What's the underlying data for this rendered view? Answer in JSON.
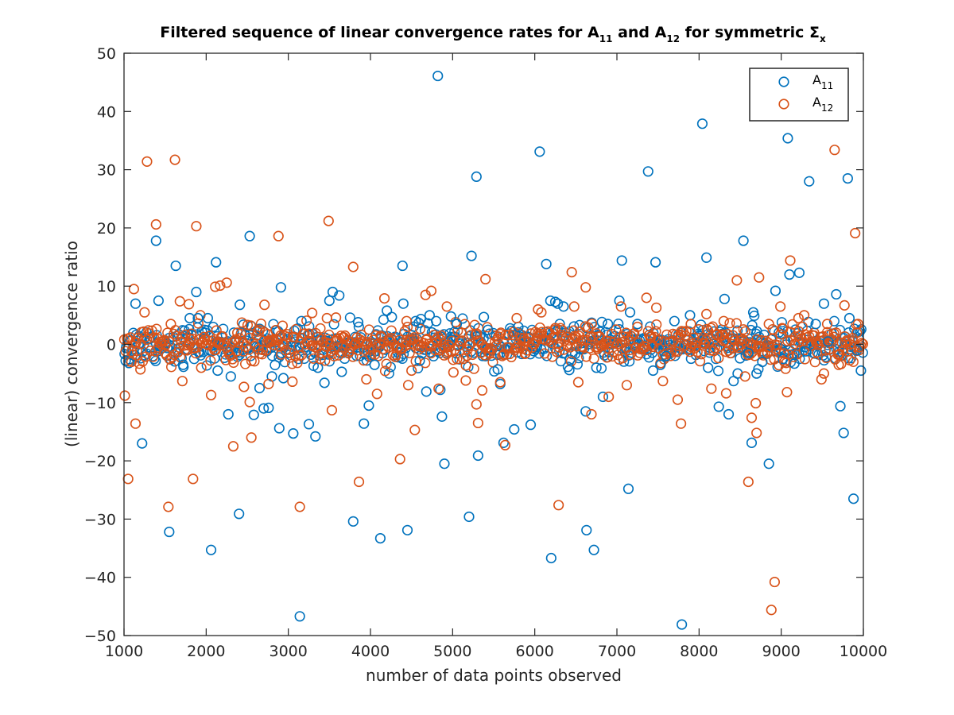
{
  "chart_data": {
    "type": "scatter",
    "title_parts": {
      "t1": "Filtered sequence of linear convergence rates for A",
      "s1": "11",
      "t2": " and A",
      "s2": "12",
      "t3": " for symmetric Σ",
      "s3": "x"
    },
    "xlabel": "number of data points observed",
    "ylabel": "(linear) convergence ratio",
    "xlim": [
      1000,
      10000
    ],
    "ylim": [
      -50,
      50
    ],
    "xticks": [
      1000,
      2000,
      3000,
      4000,
      5000,
      6000,
      7000,
      8000,
      9000,
      10000
    ],
    "yticks": [
      -50,
      -40,
      -30,
      -20,
      -10,
      0,
      10,
      20,
      30,
      40,
      50
    ],
    "grid": false,
    "legend_position": "top-right",
    "marker": "open-circle",
    "series": [
      {
        "name": "A",
        "name_sub": "11",
        "color": "#0072BD",
        "points": [
          [
            1020,
            -2.8
          ],
          [
            1060,
            -3.2
          ],
          [
            1140,
            7.0
          ],
          [
            1220,
            -17.0
          ],
          [
            1390,
            17.8
          ],
          [
            1420,
            7.5
          ],
          [
            1550,
            -32.2
          ],
          [
            1630,
            13.5
          ],
          [
            1720,
            -3.5
          ],
          [
            1800,
            4.5
          ],
          [
            1880,
            9.0
          ],
          [
            1900,
            4.5
          ],
          [
            2020,
            4.5
          ],
          [
            2060,
            -35.3
          ],
          [
            2120,
            14.1
          ],
          [
            2140,
            -4.5
          ],
          [
            2270,
            -12.0
          ],
          [
            2300,
            -5.5
          ],
          [
            2400,
            -29.1
          ],
          [
            2410,
            6.8
          ],
          [
            2530,
            18.6
          ],
          [
            2580,
            -12.1
          ],
          [
            2650,
            -7.5
          ],
          [
            2700,
            -11.0
          ],
          [
            2760,
            -10.9
          ],
          [
            2800,
            -5.5
          ],
          [
            2890,
            -14.4
          ],
          [
            2910,
            9.8
          ],
          [
            2940,
            -5.8
          ],
          [
            3060,
            -15.3
          ],
          [
            3140,
            -46.7
          ],
          [
            3160,
            4.0
          ],
          [
            3250,
            -13.7
          ],
          [
            3330,
            -15.8
          ],
          [
            3360,
            -4.0
          ],
          [
            3440,
            -6.6
          ],
          [
            3500,
            7.5
          ],
          [
            3540,
            9.0
          ],
          [
            3620,
            8.4
          ],
          [
            3650,
            -4.7
          ],
          [
            3790,
            -30.4
          ],
          [
            3850,
            3.8
          ],
          [
            3920,
            -13.6
          ],
          [
            3980,
            -10.5
          ],
          [
            4050,
            -3.5
          ],
          [
            4120,
            -33.3
          ],
          [
            4200,
            5.8
          ],
          [
            4260,
            4.7
          ],
          [
            4390,
            13.5
          ],
          [
            4400,
            7.0
          ],
          [
            4450,
            -31.9
          ],
          [
            4550,
            4.0
          ],
          [
            4600,
            -2.8
          ],
          [
            4680,
            -8.1
          ],
          [
            4720,
            5.0
          ],
          [
            4800,
            4.0
          ],
          [
            4820,
            46.1
          ],
          [
            4850,
            -7.8
          ],
          [
            4870,
            -12.4
          ],
          [
            4900,
            -20.5
          ],
          [
            4980,
            4.8
          ],
          [
            5050,
            3.5
          ],
          [
            5200,
            -29.6
          ],
          [
            5230,
            15.2
          ],
          [
            5290,
            28.8
          ],
          [
            5310,
            -19.1
          ],
          [
            5380,
            4.7
          ],
          [
            5430,
            2.5
          ],
          [
            5550,
            -4.3
          ],
          [
            5580,
            -6.8
          ],
          [
            5620,
            -16.9
          ],
          [
            5750,
            -14.6
          ],
          [
            5800,
            3.0
          ],
          [
            5950,
            -13.8
          ],
          [
            6060,
            33.1
          ],
          [
            6140,
            13.8
          ],
          [
            6190,
            7.5
          ],
          [
            6200,
            -36.7
          ],
          [
            6250,
            7.3
          ],
          [
            6280,
            7.0
          ],
          [
            6350,
            6.5
          ],
          [
            6420,
            -4.4
          ],
          [
            6620,
            -11.5
          ],
          [
            6630,
            -31.9
          ],
          [
            6720,
            -35.3
          ],
          [
            6750,
            -4.0
          ],
          [
            6830,
            -9.0
          ],
          [
            6890,
            3.5
          ],
          [
            7030,
            7.5
          ],
          [
            7060,
            14.4
          ],
          [
            7140,
            -24.8
          ],
          [
            7160,
            5.5
          ],
          [
            7250,
            3.5
          ],
          [
            7380,
            29.7
          ],
          [
            7440,
            -4.5
          ],
          [
            7470,
            14.1
          ],
          [
            7530,
            -3.5
          ],
          [
            7600,
            -2.0
          ],
          [
            7700,
            4.0
          ],
          [
            7790,
            -48.1
          ],
          [
            7890,
            5.0
          ],
          [
            8040,
            37.9
          ],
          [
            8090,
            14.9
          ],
          [
            8110,
            -4.0
          ],
          [
            8240,
            -10.7
          ],
          [
            8310,
            7.8
          ],
          [
            8360,
            -12.0
          ],
          [
            8420,
            -6.3
          ],
          [
            8470,
            -5.0
          ],
          [
            8540,
            17.8
          ],
          [
            8600,
            -1.5
          ],
          [
            8640,
            -16.9
          ],
          [
            8660,
            5.5
          ],
          [
            8700,
            -5.0
          ],
          [
            8770,
            -3.0
          ],
          [
            8850,
            -20.5
          ],
          [
            8930,
            9.2
          ],
          [
            9020,
            -2.5
          ],
          [
            9080,
            35.4
          ],
          [
            9100,
            12.0
          ],
          [
            9160,
            -3.3
          ],
          [
            9220,
            12.3
          ],
          [
            9300,
            -1.2
          ],
          [
            9340,
            28.0
          ],
          [
            9420,
            3.5
          ],
          [
            9520,
            7.0
          ],
          [
            9570,
            0.5
          ],
          [
            9670,
            8.6
          ],
          [
            9720,
            -10.6
          ],
          [
            9760,
            -15.2
          ],
          [
            9810,
            28.5
          ],
          [
            9830,
            4.5
          ],
          [
            9880,
            -26.5
          ],
          [
            9920,
            -1.0
          ],
          [
            9970,
            -4.5
          ]
        ]
      },
      {
        "name": "A",
        "name_sub": "12",
        "color": "#D95319",
        "points": [
          [
            1010,
            -8.8
          ],
          [
            1050,
            -23.1
          ],
          [
            1090,
            -3.0
          ],
          [
            1120,
            9.5
          ],
          [
            1140,
            -13.6
          ],
          [
            1200,
            -4.3
          ],
          [
            1250,
            5.5
          ],
          [
            1280,
            31.4
          ],
          [
            1390,
            20.6
          ],
          [
            1500,
            -1.5
          ],
          [
            1540,
            -27.9
          ],
          [
            1570,
            3.5
          ],
          [
            1620,
            31.7
          ],
          [
            1680,
            7.4
          ],
          [
            1710,
            -6.3
          ],
          [
            1790,
            6.9
          ],
          [
            1840,
            -23.1
          ],
          [
            1880,
            20.3
          ],
          [
            1940,
            -4.0
          ],
          [
            2060,
            -8.7
          ],
          [
            2110,
            9.9
          ],
          [
            2170,
            10.1
          ],
          [
            2250,
            10.6
          ],
          [
            2330,
            -17.5
          ],
          [
            2380,
            2.0
          ],
          [
            2460,
            -7.3
          ],
          [
            2530,
            -9.9
          ],
          [
            2550,
            -16.0
          ],
          [
            2650,
            2.5
          ],
          [
            2710,
            6.8
          ],
          [
            2760,
            -6.8
          ],
          [
            2880,
            18.6
          ],
          [
            2930,
            3.2
          ],
          [
            3050,
            -6.4
          ],
          [
            3140,
            -27.9
          ],
          [
            3290,
            5.4
          ],
          [
            3390,
            -2.5
          ],
          [
            3470,
            4.5
          ],
          [
            3490,
            21.2
          ],
          [
            3530,
            -11.3
          ],
          [
            3580,
            4.6
          ],
          [
            3690,
            1.5
          ],
          [
            3790,
            13.3
          ],
          [
            3860,
            -23.6
          ],
          [
            3950,
            -6.0
          ],
          [
            4080,
            -8.5
          ],
          [
            4170,
            7.9
          ],
          [
            4230,
            0.8
          ],
          [
            4360,
            -19.7
          ],
          [
            4440,
            4.0
          ],
          [
            4460,
            -7.0
          ],
          [
            4500,
            -4.5
          ],
          [
            4540,
            -14.7
          ],
          [
            4670,
            8.5
          ],
          [
            4740,
            9.2
          ],
          [
            4830,
            -7.6
          ],
          [
            4930,
            6.5
          ],
          [
            5010,
            -4.8
          ],
          [
            5160,
            -6.2
          ],
          [
            5290,
            -10.3
          ],
          [
            5310,
            -13.5
          ],
          [
            5360,
            -7.9
          ],
          [
            5400,
            11.2
          ],
          [
            5580,
            -6.5
          ],
          [
            5640,
            -17.3
          ],
          [
            5780,
            4.5
          ],
          [
            5870,
            1.0
          ],
          [
            6040,
            6.0
          ],
          [
            6080,
            5.5
          ],
          [
            6250,
            2.8
          ],
          [
            6290,
            -27.6
          ],
          [
            6450,
            12.4
          ],
          [
            6480,
            6.5
          ],
          [
            6530,
            -6.5
          ],
          [
            6620,
            9.8
          ],
          [
            6690,
            -12.0
          ],
          [
            6770,
            -0.5
          ],
          [
            6900,
            -9.0
          ],
          [
            7050,
            6.5
          ],
          [
            7120,
            -7.0
          ],
          [
            7250,
            3.0
          ],
          [
            7360,
            8.0
          ],
          [
            7480,
            6.3
          ],
          [
            7560,
            -6.3
          ],
          [
            7740,
            -9.5
          ],
          [
            7780,
            -13.6
          ],
          [
            7900,
            3.5
          ],
          [
            8090,
            5.2
          ],
          [
            8150,
            -7.6
          ],
          [
            8300,
            4.0
          ],
          [
            8330,
            -8.4
          ],
          [
            8460,
            11.0
          ],
          [
            8560,
            -5.5
          ],
          [
            8600,
            -23.6
          ],
          [
            8640,
            -12.6
          ],
          [
            8690,
            -10.1
          ],
          [
            8700,
            -15.2
          ],
          [
            8730,
            11.5
          ],
          [
            8850,
            3.5
          ],
          [
            8880,
            -45.6
          ],
          [
            8920,
            -40.8
          ],
          [
            8990,
            6.5
          ],
          [
            9040,
            -3.0
          ],
          [
            9070,
            -8.2
          ],
          [
            9110,
            14.4
          ],
          [
            9210,
            4.5
          ],
          [
            9280,
            5.0
          ],
          [
            9400,
            1.5
          ],
          [
            9490,
            -6.0
          ],
          [
            9520,
            -5.0
          ],
          [
            9560,
            3.5
          ],
          [
            9650,
            33.4
          ],
          [
            9700,
            -3.5
          ],
          [
            9770,
            6.7
          ],
          [
            9840,
            0.0
          ],
          [
            9900,
            19.1
          ],
          [
            9920,
            2.0
          ],
          [
            9950,
            -0.5
          ]
        ]
      }
    ],
    "band": {
      "description_free": true,
      "x_start": 1000,
      "x_end": 10000,
      "count_per_series": 650,
      "spread": 1.6
    }
  }
}
